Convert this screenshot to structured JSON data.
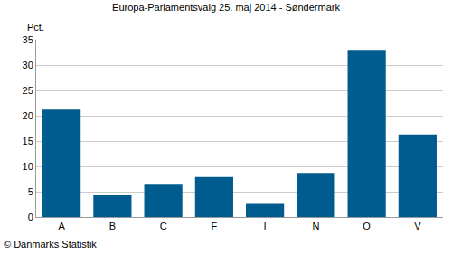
{
  "chart_data": {
    "type": "bar",
    "title": "Europa-Parlamentsvalg 25. maj 2014 - Søndermark",
    "ylabel": "Pct.",
    "annotations": [
      "© Danmarks Statistik"
    ],
    "categories": [
      "A",
      "B",
      "C",
      "F",
      "I",
      "N",
      "O",
      "V"
    ],
    "values": [
      21.2,
      4.3,
      6.4,
      7.9,
      2.6,
      8.7,
      33.0,
      16.3
    ],
    "color": "#005b8e",
    "ylim": [
      0,
      35
    ],
    "yticks": [
      0,
      5,
      10,
      15,
      20,
      25,
      30,
      35
    ],
    "grid": true
  }
}
